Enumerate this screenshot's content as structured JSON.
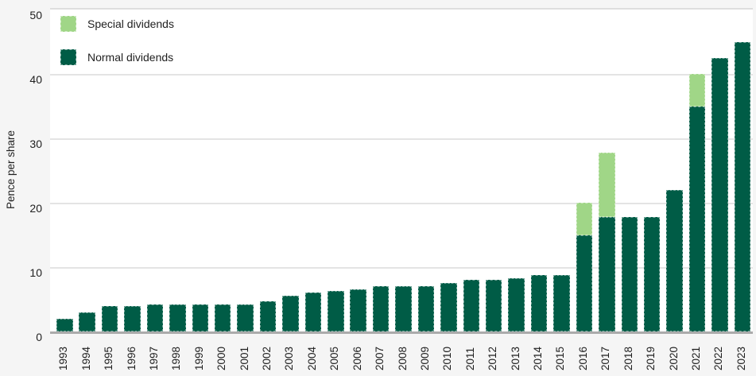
{
  "chart_data": {
    "type": "bar",
    "stacked": true,
    "title": "",
    "xlabel": "",
    "ylabel": "Pence per share",
    "ylim": [
      0,
      50
    ],
    "yticks": [
      0,
      10,
      20,
      30,
      40,
      50
    ],
    "grid": "horizontal",
    "legend_position": "top-left",
    "categories": [
      "1993",
      "1994",
      "1995",
      "1996",
      "1997",
      "1998",
      "1999",
      "2000",
      "2001",
      "2002",
      "2003",
      "2004",
      "2005",
      "2006",
      "2007",
      "2008",
      "2009",
      "2010",
      "2011",
      "2012",
      "2013",
      "2014",
      "2015",
      "2016",
      "2017",
      "2018",
      "2019",
      "2020",
      "2021",
      "2022",
      "2023"
    ],
    "series": [
      {
        "name": "Normal dividends",
        "color": "#005c46",
        "values": [
          2.0,
          3.0,
          4.0,
          4.0,
          4.25,
          4.25,
          4.25,
          4.25,
          4.25,
          4.75,
          5.5,
          6.0,
          6.3,
          6.6,
          7.0,
          7.0,
          7.0,
          7.5,
          8.0,
          8.0,
          8.25,
          8.75,
          8.75,
          15.0,
          17.75,
          17.75,
          17.75,
          22.0,
          35.0,
          42.5,
          45.0
        ]
      },
      {
        "name": "Special dividends",
        "color": "#a0d687",
        "values": [
          0,
          0,
          0,
          0,
          0,
          0,
          0,
          0,
          0,
          0,
          0,
          0,
          0,
          0,
          0,
          0,
          0,
          0,
          0,
          0,
          0,
          0,
          0,
          5.0,
          10.0,
          0,
          0,
          0,
          5.0,
          0,
          0
        ]
      }
    ]
  },
  "legend": {
    "special_label": "Special dividends",
    "normal_label": "Normal dividends"
  },
  "axes": {
    "y_title": "Pence per share"
  },
  "colors": {
    "normal_bar": "#005c46",
    "special_bar": "#a0d687",
    "page_background": "#f5f5f5",
    "plot_background": "#ffffff",
    "gridline": "#e4e4e4",
    "axis_line": "#ababab",
    "text": "#1f1f1f"
  }
}
